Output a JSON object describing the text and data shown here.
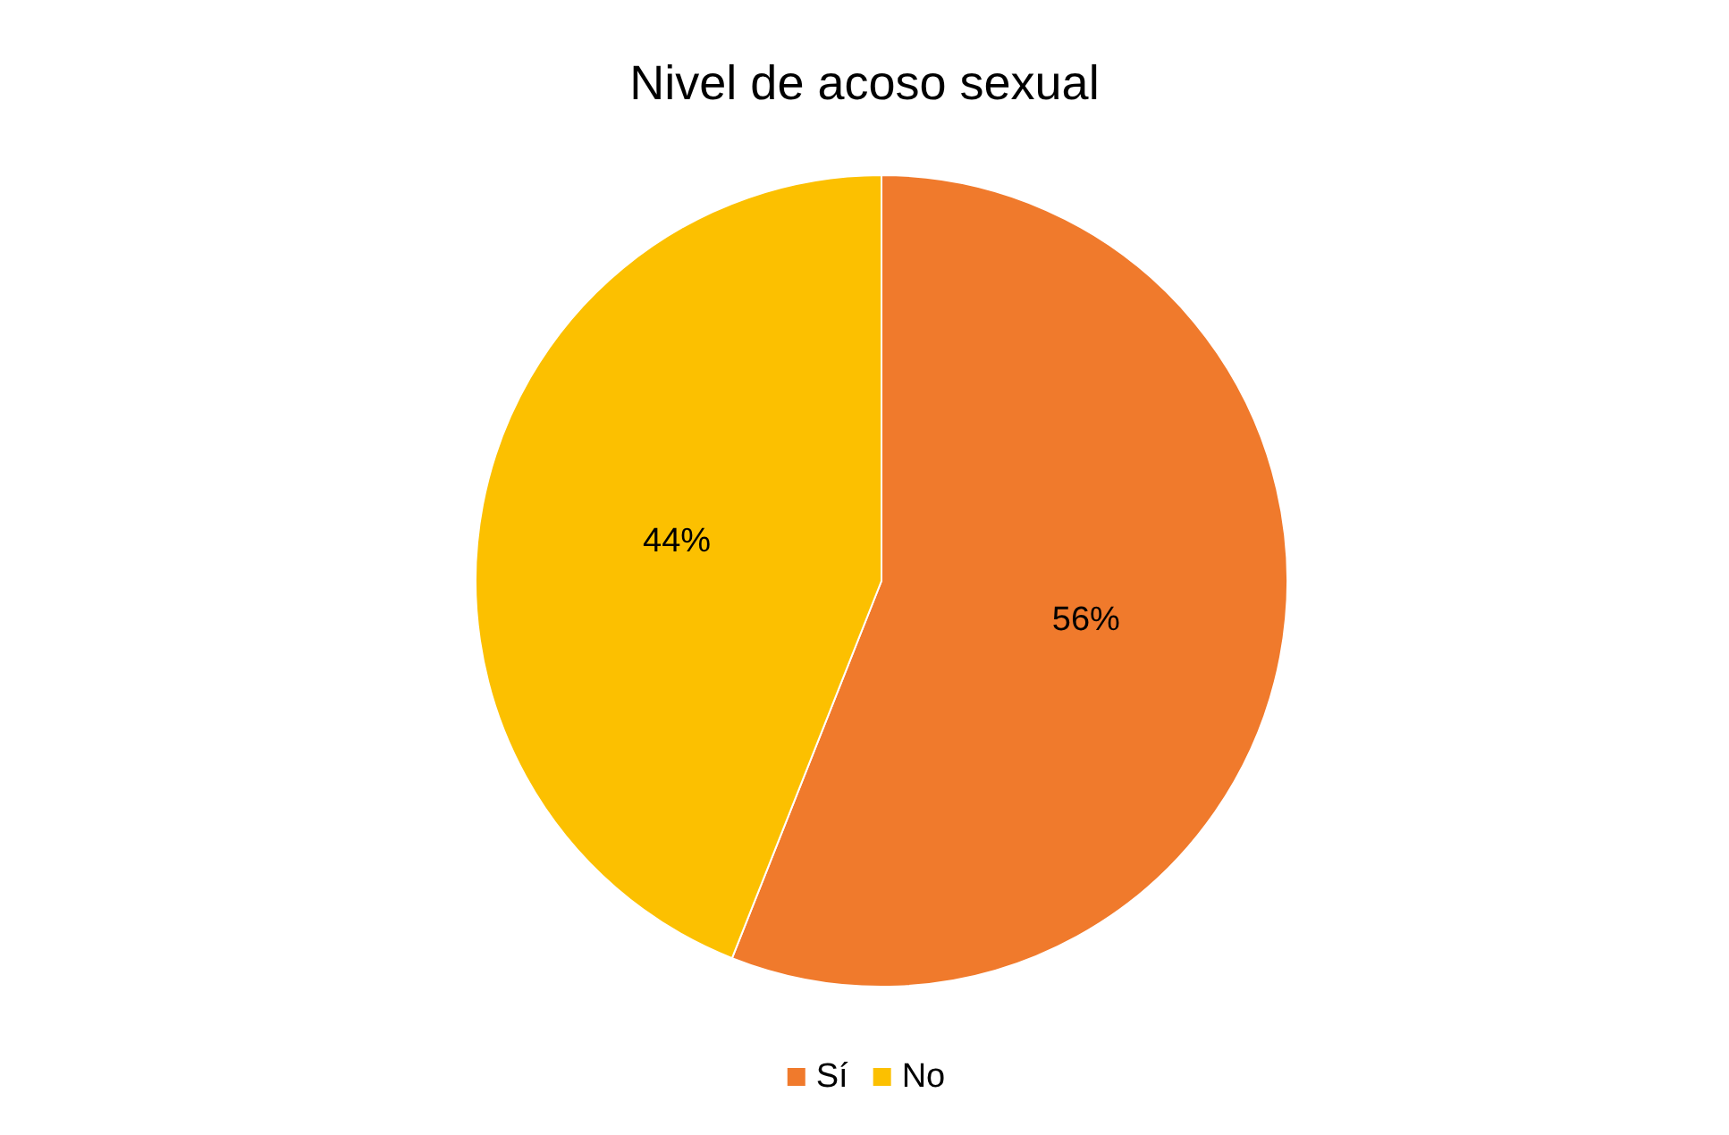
{
  "chart_data": {
    "type": "pie",
    "title": "Nivel de acoso sexual",
    "categories": [
      "Sí",
      "No"
    ],
    "values": [
      56,
      44
    ],
    "colors": [
      "#f07a2c",
      "#fcc000"
    ],
    "value_labels": [
      "56%",
      "44%"
    ],
    "legend": "bottom"
  }
}
